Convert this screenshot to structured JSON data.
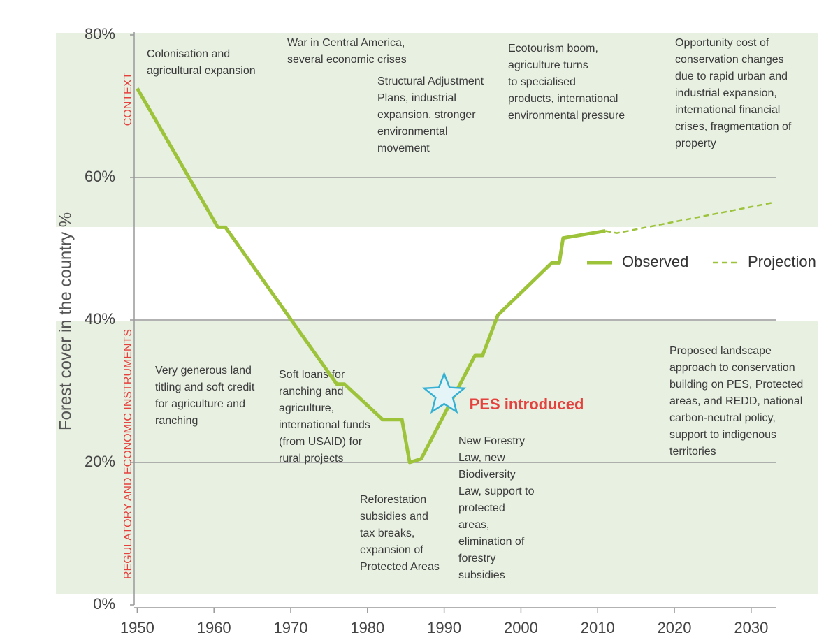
{
  "chart_data": {
    "type": "line",
    "y_axis_label": "Forest cover in the country %",
    "xlim": [
      1949.6,
      2033.2
    ],
    "xticks": [
      1950,
      1960,
      1970,
      1980,
      1990,
      2000,
      2010,
      2020,
      2030
    ],
    "ylim": [
      0,
      80
    ],
    "yticks": [
      {
        "value": 0,
        "label": "0%"
      },
      {
        "value": 20,
        "label": "20%"
      },
      {
        "value": 40,
        "label": "40%"
      },
      {
        "value": 60,
        "label": "60%"
      },
      {
        "value": 80,
        "label": "80%"
      }
    ],
    "grid": true,
    "series": [
      {
        "name": "Observed",
        "color": "#9dc33b",
        "style": "solid",
        "x": [
          1950,
          1960.5,
          1961.5,
          1976,
          1977,
          1982,
          1984.5,
          1985.5,
          1987,
          1994,
          1995,
          1997,
          2004,
          2005,
          2005.5,
          2011
        ],
        "values": [
          72.5,
          53,
          53,
          31,
          31,
          26,
          26,
          20,
          20.5,
          35,
          35,
          40.7,
          48,
          48,
          51.5,
          52.5
        ]
      },
      {
        "name": "Projection",
        "color": "#9dc33b",
        "style": "dashed",
        "x": [
          2011,
          2012.5,
          2033
        ],
        "values": [
          52.5,
          52.2,
          56.5
        ]
      }
    ],
    "sections": [
      "CONTEXT",
      "REGULATORY AND ECONOMIC INSTRUMENTS"
    ],
    "highlight": {
      "label": "PES introduced",
      "x": 1990,
      "y": 29.5
    },
    "annotations": [
      {
        "lines": [
          "Colonisation and",
          "agricultural expansion"
        ]
      },
      {
        "lines": [
          "War in Central America,",
          "several economic crises"
        ]
      },
      {
        "lines": [
          "Structural Adjustment",
          "Plans, industrial",
          "expansion, stronger",
          "environmental",
          "movement"
        ]
      },
      {
        "lines": [
          "Ecotourism boom,",
          "agriculture turns",
          "to specialised",
          "products, international",
          "environmental pressure"
        ]
      },
      {
        "lines": [
          "Opportunity cost of",
          "conservation changes",
          "due to rapid urban and",
          "industrial expansion,",
          "international financial",
          "crises, fragmentation of",
          "property"
        ]
      },
      {
        "lines": [
          "Very generous land",
          "titling and soft credit",
          "for agriculture and",
          "ranching"
        ]
      },
      {
        "lines": [
          "Soft loans for",
          "ranching and",
          "agriculture,",
          "international funds",
          "(from USAID) for",
          "rural projects"
        ]
      },
      {
        "lines": [
          "Reforestation",
          "subsidies and",
          "tax breaks,",
          "expansion of",
          "Protected Areas"
        ]
      },
      {
        "lines": [
          "New Forestry",
          "Law, new",
          "Biodiversity",
          "Law, support to",
          "protected",
          "areas,",
          "elimination of",
          "forestry",
          "subsidies"
        ]
      },
      {
        "lines": [
          "Proposed landscape",
          "approach to conservation",
          "building on PES, Protected",
          "areas, and REDD, national",
          "carbon-neutral policy,",
          "support to indigenous",
          "territories"
        ]
      }
    ]
  }
}
